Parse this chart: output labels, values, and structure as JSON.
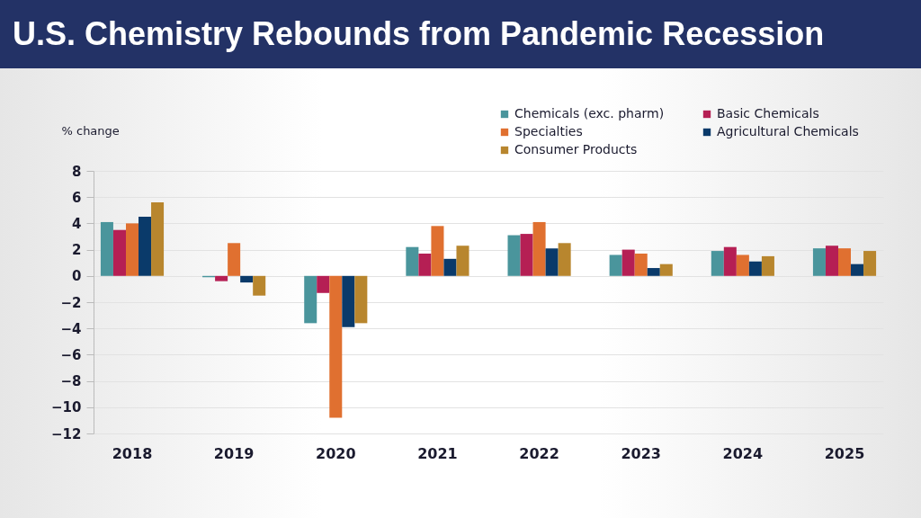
{
  "chart_data": {
    "type": "bar",
    "title": "U.S. Chemistry Rebounds from Pandemic Recession",
    "ylabel": "% change",
    "categories": [
      "2018",
      "2019",
      "2020",
      "2021",
      "2022",
      "2023",
      "2024",
      "2025"
    ],
    "series": [
      {
        "name": "Chemicals (exc. pharm)",
        "color": "#4a959c",
        "values": [
          4.1,
          -0.1,
          -3.6,
          2.2,
          3.1,
          1.6,
          1.9,
          2.1
        ]
      },
      {
        "name": "Basic Chemicals",
        "color": "#b51f54",
        "values": [
          3.5,
          -0.4,
          -1.3,
          1.7,
          3.2,
          2.0,
          2.2,
          2.3
        ]
      },
      {
        "name": "Specialties",
        "color": "#e07030",
        "values": [
          4.0,
          2.5,
          -10.8,
          3.8,
          4.1,
          1.7,
          1.6,
          2.1
        ]
      },
      {
        "name": "Agricultural Chemicals",
        "color": "#0a3a6a",
        "values": [
          4.5,
          -0.5,
          -3.9,
          1.3,
          2.1,
          0.6,
          1.1,
          0.9
        ]
      },
      {
        "name": "Consumer Products",
        "color": "#b8862e",
        "values": [
          5.6,
          -1.5,
          -3.6,
          2.3,
          2.5,
          0.9,
          1.5,
          1.9
        ]
      }
    ],
    "ylim": [
      -12,
      8
    ],
    "yticks": [
      -12,
      -10,
      -8,
      -6,
      -4,
      -2,
      0,
      2,
      4,
      6,
      8
    ],
    "grid": "y",
    "legend": "top right"
  }
}
